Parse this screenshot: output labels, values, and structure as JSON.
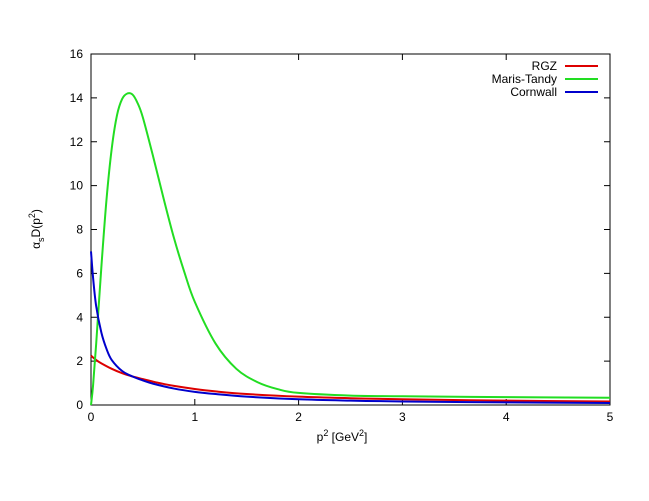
{
  "chart_data": {
    "type": "line",
    "title": "",
    "xlabel": {
      "base": "p",
      "sup1": "2",
      "mid": " [GeV",
      "sup2": "2",
      "end": "]"
    },
    "ylabel": {
      "main": "α",
      "sub": "s",
      "mid": "D(p",
      "sup": "2",
      "end": ")"
    },
    "xlim": [
      0,
      5
    ],
    "ylim": [
      0,
      16
    ],
    "xticks": [
      0,
      1,
      2,
      3,
      4,
      5
    ],
    "yticks": [
      0,
      2,
      4,
      6,
      8,
      10,
      12,
      14,
      16
    ],
    "grid": false,
    "legend_position": "top-right",
    "series": [
      {
        "name": "RGZ",
        "color": "#dd0000",
        "x": [
          0,
          0.05,
          0.1,
          0.2,
          0.3,
          0.4,
          0.5,
          0.6,
          0.7,
          0.8,
          1.0,
          1.2,
          1.5,
          2.0,
          2.5,
          3.0,
          4.0,
          5.0
        ],
        "y": [
          2.25,
          2.05,
          1.9,
          1.65,
          1.45,
          1.3,
          1.18,
          1.06,
          0.96,
          0.87,
          0.73,
          0.62,
          0.5,
          0.38,
          0.31,
          0.26,
          0.2,
          0.16
        ]
      },
      {
        "name": "Maris-Tandy",
        "color": "#22dd22",
        "x": [
          0,
          0.02,
          0.05,
          0.1,
          0.15,
          0.2,
          0.25,
          0.3,
          0.35,
          0.4,
          0.45,
          0.5,
          0.6,
          0.7,
          0.8,
          0.9,
          1.0,
          1.2,
          1.4,
          1.6,
          1.8,
          2.0,
          2.5,
          3.0,
          4.0,
          5.0
        ],
        "y": [
          0,
          0.9,
          2.8,
          6.3,
          9.4,
          11.7,
          13.2,
          13.95,
          14.2,
          14.15,
          13.75,
          13.1,
          11.3,
          9.4,
          7.6,
          6.05,
          4.7,
          2.8,
          1.65,
          1.05,
          0.72,
          0.55,
          0.43,
          0.4,
          0.36,
          0.33
        ]
      },
      {
        "name": "Cornwall",
        "color": "#0000cc",
        "x": [
          0,
          0.02,
          0.05,
          0.1,
          0.15,
          0.2,
          0.3,
          0.4,
          0.5,
          0.6,
          0.8,
          1.0,
          1.2,
          1.5,
          2.0,
          2.5,
          3.0,
          4.0,
          5.0
        ],
        "y": [
          7.0,
          5.8,
          4.5,
          3.3,
          2.55,
          2.05,
          1.55,
          1.3,
          1.12,
          0.97,
          0.75,
          0.6,
          0.5,
          0.38,
          0.26,
          0.2,
          0.16,
          0.12,
          0.09
        ]
      }
    ]
  }
}
